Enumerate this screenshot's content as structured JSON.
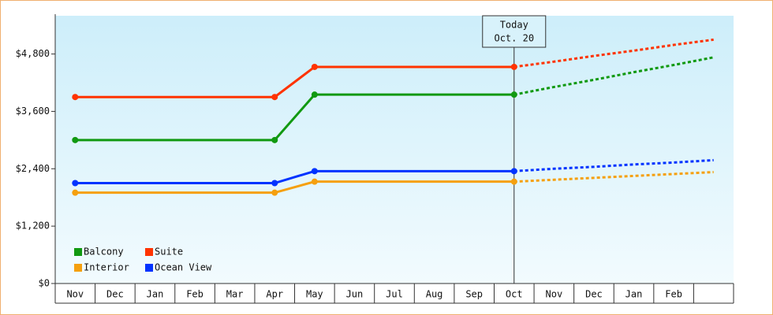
{
  "chart_data": {
    "type": "line",
    "categories": [
      "Nov",
      "Dec",
      "Jan",
      "Feb",
      "Mar",
      "Apr",
      "May",
      "Jun",
      "Jul",
      "Aug",
      "Sep",
      "Oct",
      "Nov",
      "Dec",
      "Jan",
      "Feb",
      null
    ],
    "series": [
      {
        "name": "Balcony",
        "color": "#119911",
        "values": [
          3000,
          3000,
          3000,
          3000,
          3000,
          3000,
          3950,
          3950,
          3950,
          3950,
          3950,
          3950,
          4110,
          4260,
          4420,
          4570,
          4730
        ]
      },
      {
        "name": "Suite",
        "color": "#ff3300",
        "values": [
          3900,
          3900,
          3900,
          3900,
          3900,
          3900,
          4530,
          4530,
          4530,
          4530,
          4530,
          4530,
          4640,
          4760,
          4870,
          4990,
          5100
        ]
      },
      {
        "name": "Interior",
        "color": "#f5a00f",
        "values": [
          1900,
          1900,
          1900,
          1900,
          1900,
          1900,
          2130,
          2130,
          2130,
          2130,
          2130,
          2130,
          2170,
          2210,
          2250,
          2290,
          2330
        ]
      },
      {
        "name": "Ocean View",
        "color": "#0033ff",
        "values": [
          2100,
          2100,
          2100,
          2100,
          2100,
          2100,
          2350,
          2350,
          2350,
          2350,
          2350,
          2350,
          2400,
          2440,
          2490,
          2530,
          2580
        ]
      }
    ],
    "ylim": [
      0,
      5600
    ],
    "yticks": [
      {
        "value": 0,
        "label": "$0"
      },
      {
        "value": 1200,
        "label": "$1,200"
      },
      {
        "value": 2400,
        "label": "$2,400"
      },
      {
        "value": 3600,
        "label": "$3,600"
      },
      {
        "value": 4800,
        "label": "$4,800"
      }
    ],
    "annotation": {
      "lines": [
        "Today",
        "Oct. 20"
      ],
      "category": "Oct"
    },
    "legend": "lower left"
  }
}
